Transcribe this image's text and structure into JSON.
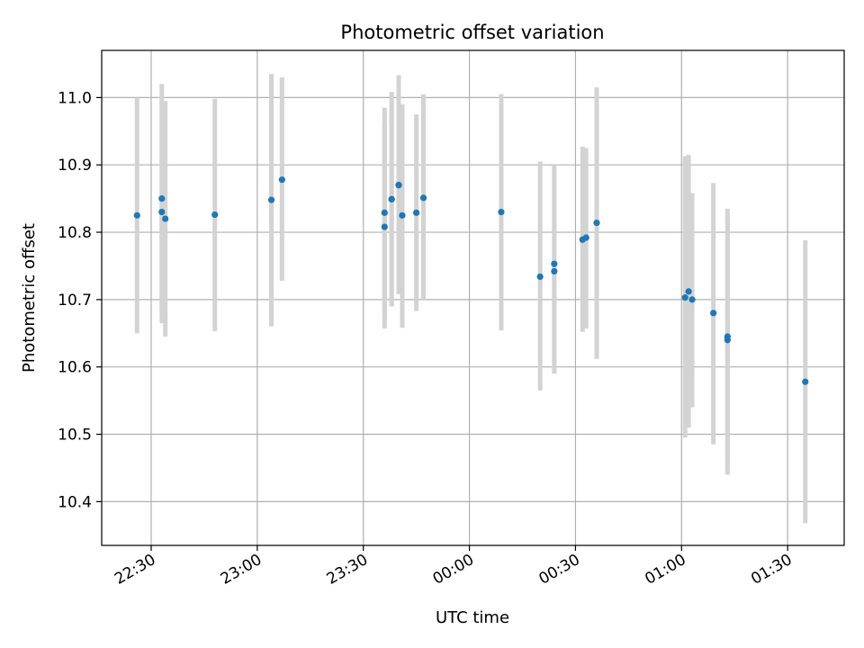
{
  "chart_data": {
    "type": "scatter",
    "title": "Photometric offset variation",
    "xlabel": "UTC time",
    "ylabel": "Photometric offset",
    "x_ticks": [
      "22:30",
      "23:00",
      "23:30",
      "00:00",
      "00:30",
      "01:00",
      "01:30"
    ],
    "x_tick_values": [
      -90,
      -60,
      -30,
      0,
      30,
      60,
      90
    ],
    "y_ticks": [
      "10.4",
      "10.5",
      "10.6",
      "10.7",
      "10.8",
      "10.9",
      "11.0"
    ],
    "y_tick_values": [
      10.4,
      10.5,
      10.6,
      10.7,
      10.8,
      10.9,
      11.0
    ],
    "xlim": [
      "22:16",
      "01:46"
    ],
    "ylim": [
      10.335,
      11.07
    ],
    "grid": true,
    "marker_color": "#1f77b4",
    "errorbar_color": "#d3d3d3",
    "series": [
      {
        "points": [
          {
            "t": "22:26",
            "y": 10.825,
            "lo": 10.65,
            "hi": 11.0
          },
          {
            "t": "22:33",
            "y": 10.83,
            "lo": 10.665,
            "hi": 10.995
          },
          {
            "t": "22:33",
            "y": 10.85,
            "lo": 10.68,
            "hi": 11.02
          },
          {
            "t": "22:34",
            "y": 10.82,
            "lo": 10.645,
            "hi": 10.995
          },
          {
            "t": "22:48",
            "y": 10.826,
            "lo": 10.653,
            "hi": 10.998
          },
          {
            "t": "23:04",
            "y": 10.848,
            "lo": 10.66,
            "hi": 11.035
          },
          {
            "t": "23:07",
            "y": 10.878,
            "lo": 10.728,
            "hi": 11.03
          },
          {
            "t": "23:36",
            "y": 10.808,
            "lo": 10.657,
            "hi": 10.96
          },
          {
            "t": "23:36",
            "y": 10.829,
            "lo": 10.673,
            "hi": 10.985
          },
          {
            "t": "23:38",
            "y": 10.849,
            "lo": 10.69,
            "hi": 11.008
          },
          {
            "t": "23:38",
            "y": 10.849,
            "lo": 10.69,
            "hi": 11.008
          },
          {
            "t": "23:40",
            "y": 10.87,
            "lo": 10.708,
            "hi": 11.033
          },
          {
            "t": "23:40",
            "y": 10.87,
            "lo": 10.713,
            "hi": 11.0
          },
          {
            "t": "23:41",
            "y": 10.825,
            "lo": 10.658,
            "hi": 10.99
          },
          {
            "t": "23:45",
            "y": 10.829,
            "lo": 10.683,
            "hi": 10.975
          },
          {
            "t": "23:47",
            "y": 10.851,
            "lo": 10.7,
            "hi": 11.005
          },
          {
            "t": "00:09",
            "y": 10.83,
            "lo": 10.654,
            "hi": 11.005
          },
          {
            "t": "00:20",
            "y": 10.734,
            "lo": 10.565,
            "hi": 10.905
          },
          {
            "t": "00:24",
            "y": 10.753,
            "lo": 10.605,
            "hi": 10.9
          },
          {
            "t": "00:24",
            "y": 10.742,
            "lo": 10.59,
            "hi": 10.895
          },
          {
            "t": "00:32",
            "y": 10.789,
            "lo": 10.652,
            "hi": 10.927
          },
          {
            "t": "00:33",
            "y": 10.792,
            "lo": 10.657,
            "hi": 10.925
          },
          {
            "t": "00:36",
            "y": 10.814,
            "lo": 10.612,
            "hi": 11.015
          },
          {
            "t": "01:01",
            "y": 10.703,
            "lo": 10.495,
            "hi": 10.913
          },
          {
            "t": "01:02",
            "y": 10.712,
            "lo": 10.51,
            "hi": 10.915
          },
          {
            "t": "01:03",
            "y": 10.7,
            "lo": 10.54,
            "hi": 10.858
          },
          {
            "t": "01:09",
            "y": 10.68,
            "lo": 10.485,
            "hi": 10.873
          },
          {
            "t": "01:13",
            "y": 10.645,
            "lo": 10.465,
            "hi": 10.828
          },
          {
            "t": "01:13",
            "y": 10.64,
            "lo": 10.44,
            "hi": 10.835
          },
          {
            "t": "01:35",
            "y": 10.578,
            "lo": 10.368,
            "hi": 10.788
          }
        ]
      }
    ]
  }
}
